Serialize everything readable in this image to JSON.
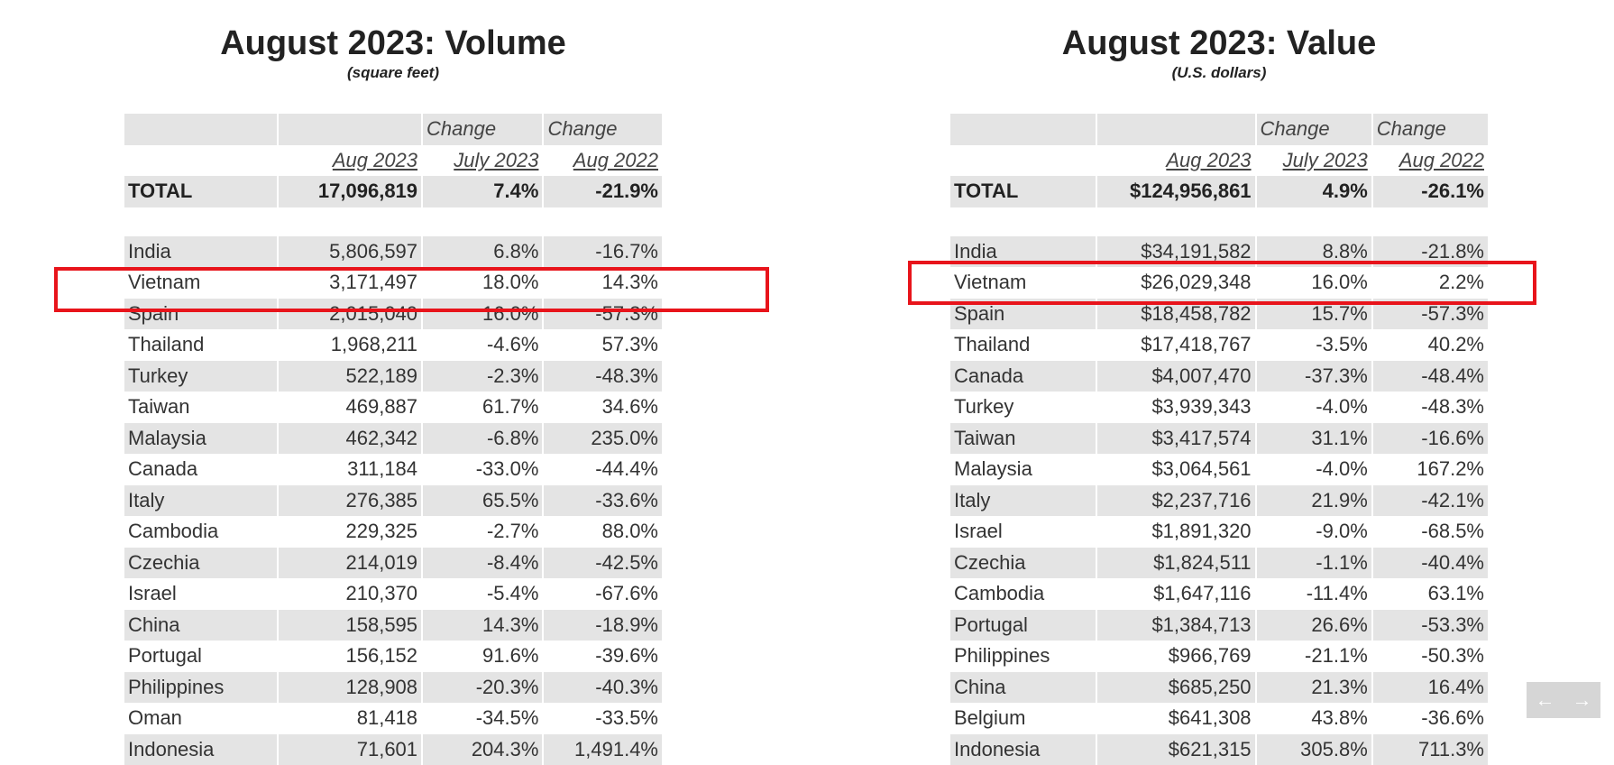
{
  "volume": {
    "title": "August 2023: Volume",
    "subtitle": "(square feet)",
    "header": {
      "change1": "Change",
      "change2": "Change",
      "col1": "Aug 2023",
      "col2": "July 2023",
      "col3": "Aug 2022"
    },
    "total": {
      "label": "TOTAL",
      "v1": "17,096,819",
      "v2": "7.4%",
      "v3": "-21.9%"
    },
    "rows": [
      {
        "country": "India",
        "v1": "5,806,597",
        "v2": "6.8%",
        "v3": "-16.7%"
      },
      {
        "country": "Vietnam",
        "v1": "3,171,497",
        "v2": "18.0%",
        "v3": "14.3%"
      },
      {
        "country": "Spain",
        "v1": "2,015,040",
        "v2": "16.0%",
        "v3": "-57.3%"
      },
      {
        "country": "Thailand",
        "v1": "1,968,211",
        "v2": "-4.6%",
        "v3": "57.3%"
      },
      {
        "country": "Turkey",
        "v1": "522,189",
        "v2": "-2.3%",
        "v3": "-48.3%"
      },
      {
        "country": "Taiwan",
        "v1": "469,887",
        "v2": "61.7%",
        "v3": "34.6%"
      },
      {
        "country": "Malaysia",
        "v1": "462,342",
        "v2": "-6.8%",
        "v3": "235.0%"
      },
      {
        "country": "Canada",
        "v1": "311,184",
        "v2": "-33.0%",
        "v3": "-44.4%"
      },
      {
        "country": "Italy",
        "v1": "276,385",
        "v2": "65.5%",
        "v3": "-33.6%"
      },
      {
        "country": "Cambodia",
        "v1": "229,325",
        "v2": "-2.7%",
        "v3": "88.0%"
      },
      {
        "country": "Czechia",
        "v1": "214,019",
        "v2": "-8.4%",
        "v3": "-42.5%"
      },
      {
        "country": "Israel",
        "v1": "210,370",
        "v2": "-5.4%",
        "v3": "-67.6%"
      },
      {
        "country": "China",
        "v1": "158,595",
        "v2": "14.3%",
        "v3": "-18.9%"
      },
      {
        "country": "Portugal",
        "v1": "156,152",
        "v2": "91.6%",
        "v3": "-39.6%"
      },
      {
        "country": "Philippines",
        "v1": "128,908",
        "v2": "-20.3%",
        "v3": "-40.3%"
      },
      {
        "country": "Oman",
        "v1": "81,418",
        "v2": "-34.5%",
        "v3": "-33.5%"
      },
      {
        "country": "Indonesia",
        "v1": "71,601",
        "v2": "204.3%",
        "v3": "1,491.4%"
      }
    ]
  },
  "value": {
    "title": "August 2023: Value",
    "subtitle": "(U.S. dollars)",
    "header": {
      "change1": "Change",
      "change2": "Change",
      "col1": "Aug 2023",
      "col2": "July 2023",
      "col3": "Aug 2022"
    },
    "total": {
      "label": "TOTAL",
      "v1": "$124,956,861",
      "v2": "4.9%",
      "v3": "-26.1%"
    },
    "rows": [
      {
        "country": "India",
        "v1": "$34,191,582",
        "v2": "8.8%",
        "v3": "-21.8%"
      },
      {
        "country": "Vietnam",
        "v1": "$26,029,348",
        "v2": "16.0%",
        "v3": "2.2%"
      },
      {
        "country": "Spain",
        "v1": "$18,458,782",
        "v2": "15.7%",
        "v3": "-57.3%"
      },
      {
        "country": "Thailand",
        "v1": "$17,418,767",
        "v2": "-3.5%",
        "v3": "40.2%"
      },
      {
        "country": "Canada",
        "v1": "$4,007,470",
        "v2": "-37.3%",
        "v3": "-48.4%"
      },
      {
        "country": "Turkey",
        "v1": "$3,939,343",
        "v2": "-4.0%",
        "v3": "-48.3%"
      },
      {
        "country": "Taiwan",
        "v1": "$3,417,574",
        "v2": "31.1%",
        "v3": "-16.6%"
      },
      {
        "country": "Malaysia",
        "v1": "$3,064,561",
        "v2": "-4.0%",
        "v3": "167.2%"
      },
      {
        "country": "Italy",
        "v1": "$2,237,716",
        "v2": "21.9%",
        "v3": "-42.1%"
      },
      {
        "country": "Israel",
        "v1": "$1,891,320",
        "v2": "-9.0%",
        "v3": "-68.5%"
      },
      {
        "country": "Czechia",
        "v1": "$1,824,511",
        "v2": "-1.1%",
        "v3": "-40.4%"
      },
      {
        "country": "Cambodia",
        "v1": "$1,647,116",
        "v2": "-11.4%",
        "v3": "63.1%"
      },
      {
        "country": "Portugal",
        "v1": "$1,384,713",
        "v2": "26.6%",
        "v3": "-53.3%"
      },
      {
        "country": "Philippines",
        "v1": "$966,769",
        "v2": "-21.1%",
        "v3": "-50.3%"
      },
      {
        "country": "China",
        "v1": "$685,250",
        "v2": "21.3%",
        "v3": "16.4%"
      },
      {
        "country": "Belgium",
        "v1": "$641,308",
        "v2": "43.8%",
        "v3": "-36.6%"
      },
      {
        "country": "Indonesia",
        "v1": "$621,315",
        "v2": "305.8%",
        "v3": "711.3%"
      }
    ]
  },
  "highlight": {
    "country": "Vietnam",
    "color": "#e8141b"
  },
  "nav": {
    "prev_icon": "arrow-left-icon",
    "next_icon": "arrow-right-icon",
    "prev_glyph": "←",
    "next_glyph": "→"
  }
}
